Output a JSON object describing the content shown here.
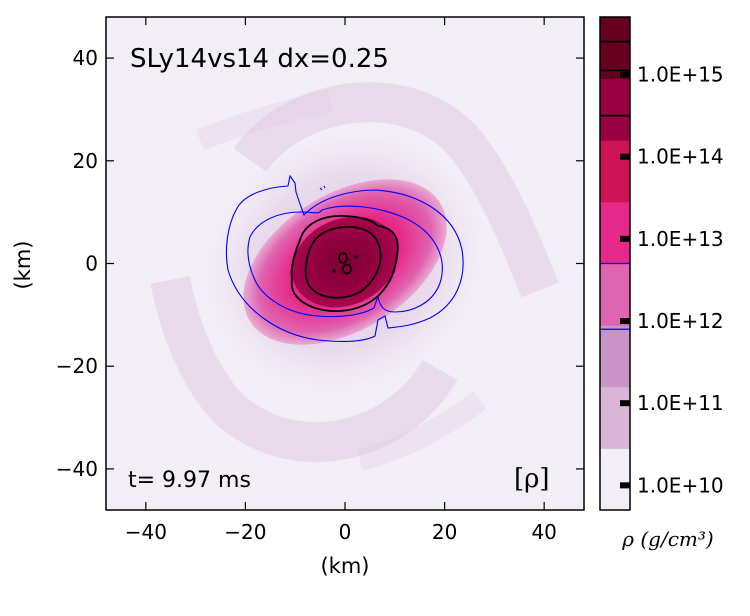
{
  "chart_data": {
    "type": "heatmap",
    "title": "SLy14vs14 dx=0.25",
    "annotation_time": "t= 9.97 ms",
    "field_tag": "[ρ]",
    "xlabel": "(km)",
    "ylabel": "(km)",
    "xlim": [
      -48,
      48
    ],
    "ylim": [
      -48,
      48
    ],
    "xticks": [
      {
        "value": -40,
        "label": "−40"
      },
      {
        "value": -20,
        "label": "−20"
      },
      {
        "value": 0,
        "label": "0"
      },
      {
        "value": 20,
        "label": "20"
      },
      {
        "value": 40,
        "label": "40"
      }
    ],
    "yticks": [
      {
        "value": 40,
        "label": "40"
      },
      {
        "value": 20,
        "label": "20"
      },
      {
        "value": 0,
        "label": "0"
      },
      {
        "value": -20,
        "label": "−20"
      },
      {
        "value": -40,
        "label": "−40"
      }
    ],
    "grid": false,
    "colorbar": {
      "label": "ρ (g/cm³)",
      "log10_range": [
        9.7,
        15.7
      ],
      "scale": "log",
      "ticks": [
        {
          "log10": 10,
          "label": "1.0E+10"
        },
        {
          "log10": 11,
          "label": "1.0E+11"
        },
        {
          "log10": 12,
          "label": "1.0E+12"
        },
        {
          "log10": 13,
          "label": "1.0E+13"
        },
        {
          "log10": 14,
          "label": "1.0E+14"
        },
        {
          "log10": 15,
          "label": "1.0E+15"
        }
      ],
      "contour_levels": [
        {
          "log10": 11.9,
          "color": "#0000ff"
        },
        {
          "log10": 12.7,
          "color": "#0000ff"
        },
        {
          "log10": 14.5,
          "color": "#000000"
        },
        {
          "log10": 15.05,
          "color": "#000000"
        },
        {
          "log10": 15.4,
          "color": "#000000"
        }
      ],
      "colors": [
        "#f2eef6",
        "#d9b5d9",
        "#c994c7",
        "#df65b0",
        "#e7298a",
        "#ce1256",
        "#980043",
        "#67001f"
      ]
    },
    "structure": {
      "core_center_km": [
        0,
        0
      ],
      "core_color": "#980043",
      "disk_color": "#e7298a",
      "halo_color": "#d9b5d9",
      "background_color": "#f2eef6"
    }
  }
}
